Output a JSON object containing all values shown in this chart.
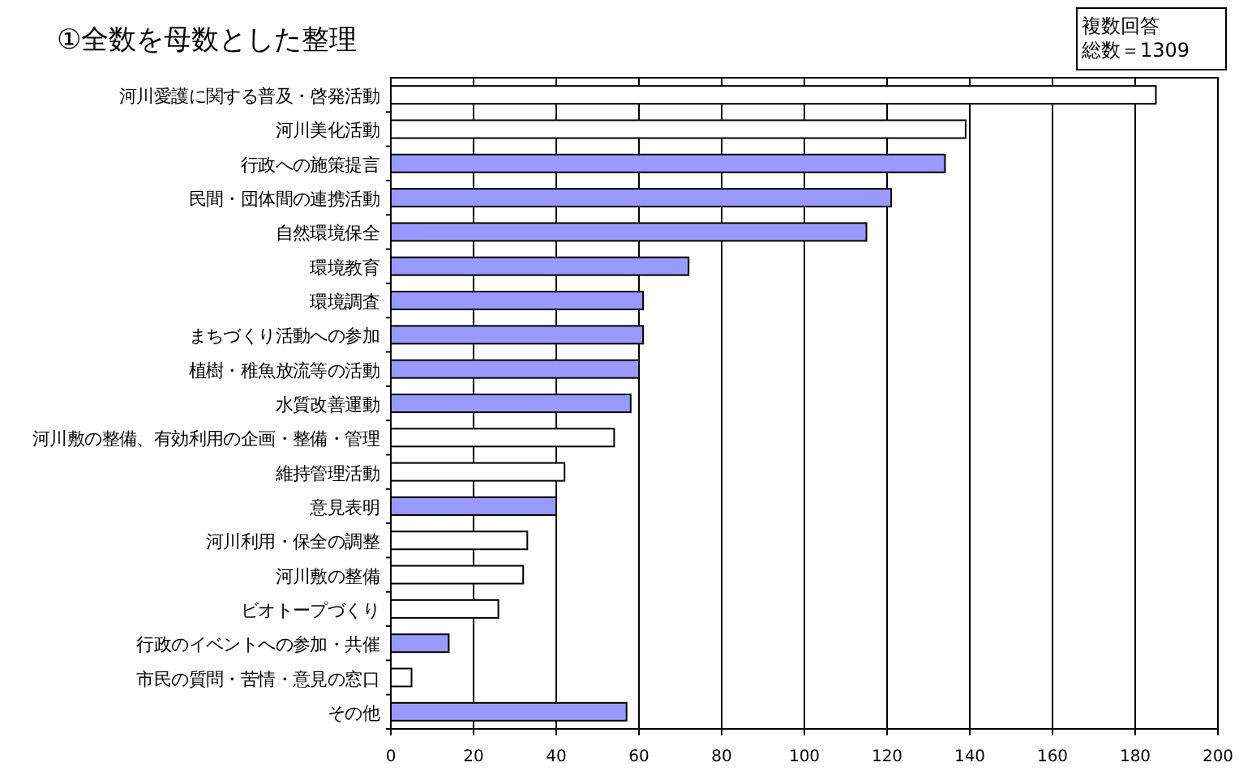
{
  "chart_data": {
    "type": "bar",
    "orientation": "horizontal",
    "title": "①全数を母数とした整理",
    "annotations": [
      "複数回答",
      "総数＝1309"
    ],
    "categories": [
      "河川愛護に関する普及・啓発活動",
      "河川美化活動",
      "行政への施策提言",
      "民間・団体間の連携活動",
      "自然環境保全",
      "環境教育",
      "環境調査",
      "まちづくり活動への参加",
      "植樹・稚魚放流等の活動",
      "水質改善運動",
      "河川敷の整備、有効利用の企画・整備・管理",
      "維持管理活動",
      "意見表明",
      "河川利用・保全の調整",
      "河川敷の整備",
      "ビオトープづくり",
      "行政のイベントへの参加・共催",
      "市民の質問・苦情・意見の窓口",
      "その他"
    ],
    "values": [
      185,
      139,
      134,
      121,
      115,
      72,
      61,
      61,
      60,
      58,
      54,
      42,
      40,
      33,
      32,
      26,
      14,
      5,
      57
    ],
    "colors": [
      "#ffffff",
      "#ffffff",
      "#9999ff",
      "#9999ff",
      "#9999ff",
      "#9999ff",
      "#9999ff",
      "#9999ff",
      "#9999ff",
      "#9999ff",
      "#ffffff",
      "#ffffff",
      "#9999ff",
      "#ffffff",
      "#ffffff",
      "#ffffff",
      "#9999ff",
      "#ffffff",
      "#9999ff"
    ],
    "xlim": [
      0,
      200
    ],
    "xticks": [
      0,
      20,
      40,
      60,
      80,
      100,
      120,
      140,
      160,
      180,
      200
    ],
    "grid": "x"
  }
}
